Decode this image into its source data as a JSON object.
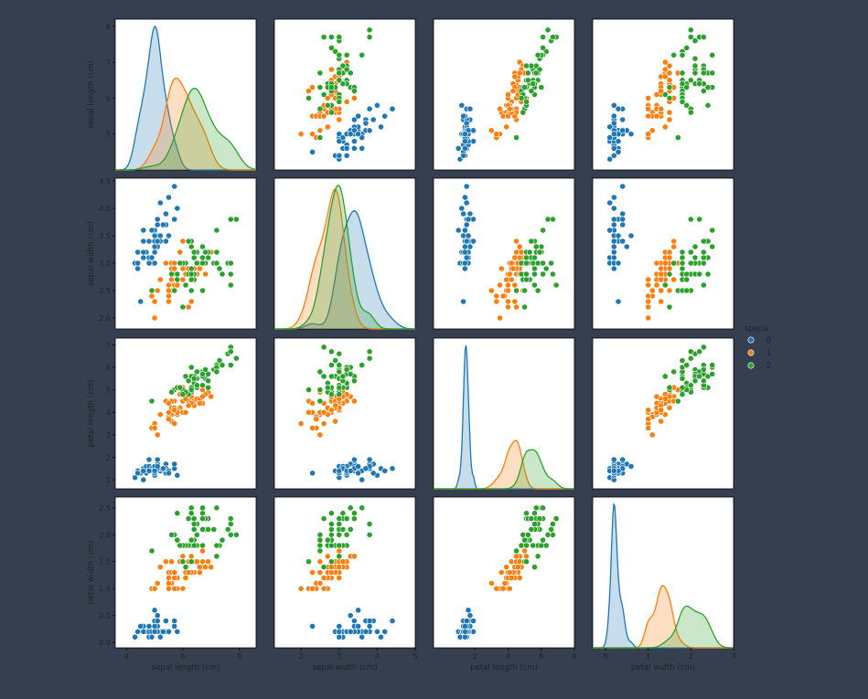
{
  "chart_data": {
    "type": "scatter",
    "kind": "pairplot",
    "variables": [
      "sepal length (cm)",
      "sepal width (cm)",
      "petal length (cm)",
      "petal width (cm)"
    ],
    "ticks": {
      "sepal length (cm)": [
        4,
        6,
        8
      ],
      "sepal width (cm)": [
        2,
        3,
        4,
        5
      ],
      "petal length (cm)": [
        2,
        4,
        6,
        8
      ],
      "petal width (cm)": [
        0,
        1,
        2,
        3
      ]
    },
    "y_ticks": {
      "sepal length (cm)": [
        5,
        6,
        7,
        8
      ],
      "sepal width (cm)": [
        2.0,
        2.5,
        3.0,
        3.5,
        4.0,
        4.5
      ],
      "petal length (cm)": [
        1,
        2,
        3,
        4,
        5,
        6,
        7
      ],
      "petal width (cm)": [
        0.0,
        0.5,
        1.0,
        1.5,
        2.0,
        2.5
      ]
    },
    "x_ranges": {
      "sepal length (cm)": [
        3.6,
        8.6
      ],
      "sepal width (cm)": [
        1.3,
        5.0
      ],
      "petal length (cm)": [
        -0.5,
        8.0
      ],
      "petal width (cm)": [
        -0.3,
        3.0
      ]
    },
    "y_ranges": {
      "sepal length (cm)": [
        4.0,
        8.2
      ],
      "sepal width (cm)": [
        1.8,
        4.55
      ],
      "petal length (cm)": [
        0.6,
        7.3
      ],
      "petal width (cm)": [
        -0.1,
        2.7
      ]
    },
    "diagonal": "kde",
    "legend": {
      "title": "specis",
      "labels": [
        "0",
        "1",
        "2"
      ],
      "placement": "right"
    },
    "series": [
      {
        "name": "0",
        "color": "#1f77b4",
        "sepal_length": [
          5.1,
          4.9,
          4.7,
          4.6,
          5.0,
          5.4,
          4.6,
          5.0,
          4.4,
          4.9,
          5.4,
          4.8,
          4.8,
          4.3,
          5.8,
          5.7,
          5.4,
          5.1,
          5.7,
          5.1,
          5.4,
          5.1,
          4.6,
          5.1,
          4.8,
          5.0,
          5.0,
          5.2,
          5.2,
          4.7,
          4.8,
          5.4,
          5.2,
          5.5,
          4.9,
          5.0,
          5.5,
          4.9,
          4.4,
          5.1,
          5.0,
          4.5,
          4.4,
          5.0,
          5.1,
          4.8,
          5.1,
          4.6,
          5.3,
          5.0
        ],
        "sepal_width": [
          3.5,
          3.0,
          3.2,
          3.1,
          3.6,
          3.9,
          3.4,
          3.4,
          2.9,
          3.1,
          3.7,
          3.4,
          3.0,
          3.0,
          4.0,
          4.4,
          3.9,
          3.5,
          3.8,
          3.8,
          3.4,
          3.7,
          3.6,
          3.3,
          3.4,
          3.0,
          3.4,
          3.5,
          3.4,
          3.2,
          3.1,
          3.4,
          4.1,
          4.2,
          3.1,
          3.2,
          3.5,
          3.6,
          3.0,
          3.4,
          3.5,
          2.3,
          3.2,
          3.5,
          3.8,
          3.0,
          3.8,
          3.2,
          3.7,
          3.3
        ],
        "petal_length": [
          1.4,
          1.4,
          1.3,
          1.5,
          1.4,
          1.7,
          1.4,
          1.5,
          1.4,
          1.5,
          1.5,
          1.6,
          1.4,
          1.1,
          1.2,
          1.5,
          1.3,
          1.4,
          1.7,
          1.5,
          1.7,
          1.5,
          1.0,
          1.7,
          1.9,
          1.6,
          1.6,
          1.5,
          1.4,
          1.6,
          1.6,
          1.5,
          1.5,
          1.4,
          1.5,
          1.2,
          1.3,
          1.4,
          1.3,
          1.5,
          1.3,
          1.3,
          1.3,
          1.6,
          1.9,
          1.4,
          1.6,
          1.4,
          1.5,
          1.4
        ],
        "petal_width": [
          0.2,
          0.2,
          0.2,
          0.2,
          0.2,
          0.4,
          0.3,
          0.2,
          0.2,
          0.1,
          0.2,
          0.2,
          0.1,
          0.1,
          0.2,
          0.4,
          0.4,
          0.3,
          0.3,
          0.3,
          0.2,
          0.4,
          0.2,
          0.5,
          0.2,
          0.2,
          0.4,
          0.2,
          0.2,
          0.2,
          0.2,
          0.4,
          0.1,
          0.2,
          0.2,
          0.2,
          0.2,
          0.1,
          0.2,
          0.2,
          0.3,
          0.3,
          0.2,
          0.6,
          0.4,
          0.3,
          0.2,
          0.2,
          0.2,
          0.2
        ]
      },
      {
        "name": "1",
        "color": "#ff7f0e",
        "sepal_length": [
          7.0,
          6.4,
          6.9,
          5.5,
          6.5,
          5.7,
          6.3,
          4.9,
          6.6,
          5.2,
          5.0,
          5.9,
          6.0,
          6.1,
          5.6,
          6.7,
          5.6,
          5.8,
          6.2,
          5.6,
          5.9,
          6.1,
          6.3,
          6.1,
          6.4,
          6.6,
          6.8,
          6.7,
          6.0,
          5.7,
          5.5,
          5.5,
          5.8,
          6.0,
          5.4,
          6.0,
          6.7,
          6.3,
          5.6,
          5.5,
          5.5,
          6.1,
          5.8,
          5.0,
          5.6,
          5.7,
          5.7,
          6.2,
          5.1,
          5.7
        ],
        "sepal_width": [
          3.2,
          3.2,
          3.1,
          2.3,
          2.8,
          2.8,
          3.3,
          2.4,
          2.9,
          2.7,
          2.0,
          3.0,
          2.2,
          2.9,
          2.9,
          3.1,
          3.0,
          2.7,
          2.2,
          2.5,
          3.2,
          2.8,
          2.5,
          2.8,
          2.9,
          3.0,
          2.8,
          3.0,
          2.9,
          2.6,
          2.4,
          2.4,
          2.7,
          2.7,
          3.0,
          3.4,
          3.1,
          2.3,
          3.0,
          2.5,
          2.6,
          3.0,
          2.6,
          2.3,
          2.7,
          3.0,
          2.9,
          2.9,
          2.5,
          2.8
        ],
        "petal_length": [
          4.7,
          4.5,
          4.9,
          4.0,
          4.6,
          4.5,
          4.7,
          3.3,
          4.6,
          3.9,
          3.5,
          4.2,
          4.0,
          4.7,
          3.6,
          4.4,
          4.5,
          4.1,
          4.5,
          3.9,
          4.8,
          4.0,
          4.9,
          4.7,
          4.3,
          4.4,
          4.8,
          5.0,
          4.5,
          3.5,
          3.8,
          3.7,
          3.9,
          5.1,
          4.5,
          4.5,
          4.7,
          4.4,
          4.1,
          4.0,
          4.4,
          4.6,
          4.0,
          3.3,
          4.2,
          4.2,
          4.2,
          4.3,
          3.0,
          4.1
        ],
        "petal_width": [
          1.4,
          1.5,
          1.5,
          1.3,
          1.5,
          1.3,
          1.6,
          1.0,
          1.3,
          1.4,
          1.0,
          1.5,
          1.0,
          1.4,
          1.3,
          1.4,
          1.5,
          1.0,
          1.5,
          1.1,
          1.8,
          1.3,
          1.5,
          1.2,
          1.3,
          1.4,
          1.4,
          1.7,
          1.5,
          1.0,
          1.1,
          1.0,
          1.2,
          1.6,
          1.5,
          1.6,
          1.5,
          1.3,
          1.3,
          1.3,
          1.2,
          1.4,
          1.2,
          1.0,
          1.3,
          1.2,
          1.3,
          1.3,
          1.1,
          1.3
        ]
      },
      {
        "name": "2",
        "color": "#2ca02c",
        "sepal_length": [
          6.3,
          5.8,
          7.1,
          6.3,
          6.5,
          7.6,
          4.9,
          7.3,
          6.7,
          7.2,
          6.5,
          6.4,
          6.8,
          5.7,
          5.8,
          6.4,
          6.5,
          7.7,
          7.7,
          6.0,
          6.9,
          5.6,
          7.7,
          6.3,
          6.7,
          7.2,
          6.2,
          6.1,
          6.4,
          7.2,
          7.4,
          7.9,
          6.4,
          6.3,
          6.1,
          7.7,
          6.3,
          6.4,
          6.0,
          6.9,
          6.7,
          6.9,
          5.8,
          6.8,
          6.7,
          6.7,
          6.3,
          6.5,
          6.2,
          5.9
        ],
        "sepal_width": [
          3.3,
          2.7,
          3.0,
          2.9,
          3.0,
          3.0,
          2.5,
          2.9,
          2.5,
          3.6,
          3.2,
          2.7,
          3.0,
          2.5,
          2.8,
          3.2,
          3.0,
          3.8,
          2.6,
          2.2,
          3.2,
          2.8,
          2.8,
          2.7,
          3.3,
          3.2,
          2.8,
          3.0,
          2.8,
          3.0,
          2.8,
          3.8,
          2.8,
          2.8,
          2.6,
          3.0,
          3.4,
          3.1,
          3.0,
          3.1,
          3.1,
          3.1,
          2.7,
          3.2,
          3.3,
          3.0,
          2.5,
          3.0,
          3.4,
          3.0
        ],
        "petal_length": [
          6.0,
          5.1,
          5.9,
          5.6,
          5.8,
          6.6,
          4.5,
          6.3,
          5.8,
          6.1,
          5.1,
          5.3,
          5.5,
          5.0,
          5.1,
          5.3,
          5.5,
          6.7,
          6.9,
          5.0,
          5.7,
          4.9,
          6.7,
          4.9,
          5.7,
          6.0,
          4.8,
          4.9,
          5.6,
          5.8,
          6.1,
          6.4,
          5.6,
          5.1,
          5.6,
          6.1,
          5.6,
          5.5,
          4.8,
          5.4,
          5.6,
          5.1,
          5.1,
          5.9,
          5.7,
          5.2,
          5.0,
          5.2,
          5.4,
          5.1
        ],
        "petal_width": [
          2.5,
          1.9,
          2.1,
          1.8,
          2.2,
          2.1,
          1.7,
          1.8,
          1.8,
          2.5,
          2.0,
          1.9,
          2.1,
          2.0,
          2.4,
          2.3,
          1.8,
          2.2,
          2.3,
          1.5,
          2.3,
          2.0,
          2.0,
          1.8,
          2.1,
          1.8,
          1.8,
          1.8,
          2.1,
          1.6,
          1.9,
          2.0,
          2.2,
          1.5,
          1.4,
          2.3,
          2.4,
          1.8,
          1.8,
          2.1,
          2.4,
          2.3,
          1.9,
          2.3,
          2.5,
          2.3,
          1.9,
          2.0,
          2.3,
          1.8
        ]
      }
    ]
  }
}
